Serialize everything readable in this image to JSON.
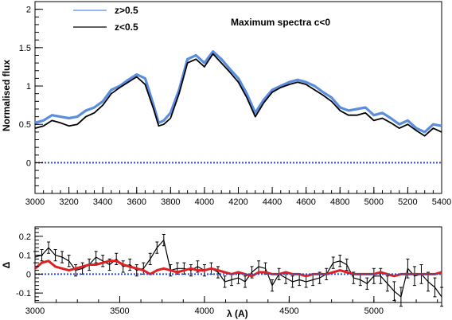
{
  "chart_data": [
    {
      "type": "line",
      "title": "",
      "annotation": "Maximum spectra c<0",
      "xlabel": "",
      "ylabel": "Normalised flux",
      "xlim": [
        3000,
        5400
      ],
      "ylim": [
        -0.4,
        2.1
      ],
      "grid": false,
      "legend": "top-left",
      "xticks": [
        3000,
        3200,
        3400,
        3600,
        3800,
        4000,
        4200,
        4400,
        4600,
        4800,
        5000,
        5200,
        5400
      ],
      "yticks": [
        0,
        0.5,
        1,
        1.5,
        2
      ],
      "ytick_labels": [
        "0",
        "0.5",
        "1",
        "1.5",
        "2"
      ],
      "series": [
        {
          "name": "z>0.5",
          "color": "#5b8ddf",
          "x": [
            3000,
            3050,
            3100,
            3150,
            3200,
            3250,
            3300,
            3350,
            3400,
            3450,
            3500,
            3550,
            3600,
            3650,
            3700,
            3730,
            3760,
            3800,
            3850,
            3900,
            3950,
            4000,
            4050,
            4100,
            4150,
            4200,
            4250,
            4300,
            4350,
            4400,
            4450,
            4500,
            4550,
            4600,
            4650,
            4700,
            4750,
            4800,
            4850,
            4900,
            4950,
            5000,
            5050,
            5100,
            5150,
            5200,
            5250,
            5300,
            5350,
            5400
          ],
          "y": [
            0.52,
            0.55,
            0.62,
            0.6,
            0.58,
            0.6,
            0.68,
            0.72,
            0.8,
            0.95,
            1.0,
            1.08,
            1.15,
            1.1,
            0.75,
            0.52,
            0.55,
            0.65,
            0.95,
            1.35,
            1.4,
            1.3,
            1.45,
            1.35,
            1.22,
            1.1,
            0.9,
            0.65,
            0.82,
            0.95,
            1.0,
            1.05,
            1.08,
            1.05,
            1.0,
            0.92,
            0.85,
            0.72,
            0.68,
            0.7,
            0.72,
            0.62,
            0.65,
            0.58,
            0.5,
            0.55,
            0.45,
            0.4,
            0.5,
            0.48
          ]
        },
        {
          "name": "z<0.5",
          "color": "#000000",
          "x": [
            3000,
            3050,
            3100,
            3150,
            3200,
            3250,
            3300,
            3350,
            3400,
            3450,
            3500,
            3550,
            3600,
            3650,
            3700,
            3730,
            3760,
            3800,
            3850,
            3900,
            3950,
            4000,
            4050,
            4100,
            4150,
            4200,
            4250,
            4300,
            4350,
            4400,
            4450,
            4500,
            4550,
            4600,
            4650,
            4700,
            4750,
            4800,
            4850,
            4900,
            4950,
            5000,
            5050,
            5100,
            5150,
            5200,
            5250,
            5300,
            5350,
            5400
          ],
          "y": [
            0.45,
            0.48,
            0.55,
            0.52,
            0.48,
            0.5,
            0.6,
            0.65,
            0.75,
            0.9,
            0.98,
            1.05,
            1.12,
            1.02,
            0.7,
            0.48,
            0.5,
            0.58,
            0.9,
            1.3,
            1.35,
            1.25,
            1.42,
            1.3,
            1.18,
            1.05,
            0.85,
            0.6,
            0.78,
            0.92,
            0.98,
            1.02,
            1.05,
            1.02,
            0.95,
            0.88,
            0.8,
            0.68,
            0.62,
            0.62,
            0.65,
            0.55,
            0.58,
            0.52,
            0.45,
            0.5,
            0.42,
            0.35,
            0.45,
            0.4
          ]
        },
        {
          "name": "",
          "color": "#2c4fbf",
          "x": [
            3000,
            5400
          ],
          "y": [
            0,
            0
          ]
        }
      ]
    },
    {
      "type": "line",
      "title": "",
      "xlabel": "λ (A)",
      "ylabel": "Δ",
      "xlim": [
        3000,
        5400
      ],
      "ylim": [
        -0.15,
        0.25
      ],
      "grid": false,
      "xticks": [
        3000,
        3500,
        4000,
        4500,
        5000
      ],
      "yticks": [
        -0.1,
        0,
        0.1,
        0.2
      ],
      "ytick_labels": [
        "-0.1",
        "0",
        "0.1",
        "0.2"
      ],
      "series": [
        {
          "name": "",
          "color": "#000000",
          "error_bars": true,
          "x": [
            3000,
            3040,
            3080,
            3120,
            3160,
            3200,
            3240,
            3280,
            3320,
            3360,
            3400,
            3440,
            3480,
            3520,
            3560,
            3600,
            3640,
            3680,
            3720,
            3760,
            3800,
            3840,
            3880,
            3920,
            3960,
            4000,
            4040,
            4080,
            4120,
            4160,
            4200,
            4240,
            4280,
            4320,
            4360,
            4400,
            4440,
            4480,
            4520,
            4560,
            4600,
            4640,
            4680,
            4720,
            4760,
            4800,
            4840,
            4880,
            4920,
            4960,
            5000,
            5040,
            5080,
            5120,
            5160,
            5200,
            5240,
            5280,
            5320,
            5360,
            5400
          ],
          "y": [
            0.09,
            0.1,
            0.14,
            0.1,
            0.09,
            0.07,
            0.02,
            0.03,
            0.05,
            0.09,
            0.07,
            0.05,
            0.08,
            0.04,
            0.05,
            0.02,
            0.03,
            0.08,
            0.14,
            0.18,
            0.02,
            0.03,
            0.03,
            0.02,
            0.04,
            0.02,
            0.03,
            0.01,
            -0.04,
            -0.03,
            -0.02,
            -0.04,
            0.01,
            0.04,
            0.03,
            -0.06,
            0.0,
            -0.02,
            -0.04,
            -0.03,
            -0.04,
            -0.03,
            -0.02,
            0.0,
            0.06,
            0.07,
            0.05,
            -0.02,
            -0.03,
            -0.05,
            -0.01,
            -0.01,
            -0.05,
            -0.09,
            -0.12,
            0.03,
            -0.01,
            0.0,
            -0.04,
            -0.07,
            -0.12
          ],
          "errors": [
            0.03,
            0.03,
            0.03,
            0.03,
            0.03,
            0.03,
            0.03,
            0.03,
            0.03,
            0.03,
            0.03,
            0.03,
            0.03,
            0.03,
            0.03,
            0.03,
            0.03,
            0.03,
            0.03,
            0.03,
            0.03,
            0.03,
            0.03,
            0.03,
            0.03,
            0.03,
            0.03,
            0.03,
            0.03,
            0.03,
            0.03,
            0.03,
            0.03,
            0.03,
            0.03,
            0.03,
            0.03,
            0.03,
            0.03,
            0.03,
            0.03,
            0.03,
            0.03,
            0.03,
            0.03,
            0.03,
            0.03,
            0.03,
            0.03,
            0.03,
            0.04,
            0.04,
            0.04,
            0.05,
            0.05,
            0.05,
            0.05,
            0.05,
            0.05,
            0.05,
            0.05
          ]
        },
        {
          "name": "",
          "color": "#e02020",
          "x": [
            3000,
            3040,
            3080,
            3120,
            3160,
            3200,
            3240,
            3280,
            3320,
            3360,
            3400,
            3440,
            3480,
            3520,
            3560,
            3600,
            3640,
            3680,
            3720,
            3760,
            3800,
            3840,
            3880,
            3920,
            3960,
            4000,
            4040,
            4080,
            4120,
            4160,
            4200,
            4240,
            4280,
            4320,
            4360,
            4400,
            4440,
            4480,
            4520,
            4560,
            4600,
            4640,
            4680,
            4720,
            4760,
            4800,
            4840,
            4880,
            4920,
            4960,
            5000,
            5040,
            5080,
            5120,
            5160,
            5200,
            5240,
            5280,
            5320,
            5360,
            5400
          ],
          "y": [
            0.03,
            0.06,
            0.07,
            0.04,
            0.03,
            0.02,
            0.03,
            0.04,
            0.05,
            0.05,
            0.06,
            0.07,
            0.07,
            0.05,
            0.04,
            0.03,
            0.02,
            0.0,
            0.02,
            0.03,
            0.02,
            0.01,
            0.02,
            0.03,
            0.02,
            0.02,
            0.03,
            0.02,
            0.01,
            0.0,
            0.01,
            0.0,
            -0.01,
            0.01,
            0.01,
            0.0,
            0.0,
            0.01,
            0.0,
            0.0,
            -0.01,
            0.0,
            0.0,
            0.0,
            0.01,
            0.02,
            0.01,
            0.0,
            0.0,
            0.0,
            0.0,
            0.01,
            0.0,
            -0.01,
            0.0,
            0.0,
            0.0,
            0.0,
            0.0,
            0.0,
            0.01
          ]
        },
        {
          "name": "",
          "color": "#2c4fbf",
          "x": [
            3000,
            5400
          ],
          "y": [
            0,
            0
          ]
        }
      ]
    }
  ]
}
